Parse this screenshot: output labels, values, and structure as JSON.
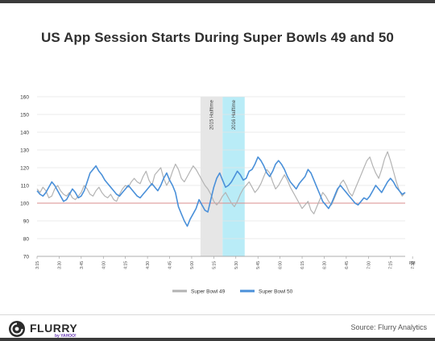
{
  "header": {
    "title": "US App Session Starts During Super Bowls 49 and 50"
  },
  "footer": {
    "logo_text": "FLURRY",
    "logo_sub": "by YAHOO!",
    "source": "Source: Flurry Analytics"
  },
  "colors": {
    "sb49": "#b3b3b3",
    "sb50": "#4a90d9",
    "baseline": "#d98c8c",
    "halftime_2015": "#e6e6e6",
    "halftime_2016": "#b9ecf7"
  },
  "chart_data": {
    "type": "line",
    "title": "US App Session Starts During Super Bowls 49 and 50",
    "ylim": [
      70,
      160
    ],
    "yticks": [
      70,
      80,
      90,
      100,
      110,
      120,
      130,
      140,
      150,
      160
    ],
    "xlim": [
      0,
      125
    ],
    "xticks": [
      {
        "x": 0,
        "label": "3:15"
      },
      {
        "x": 7.5,
        "label": "3:30"
      },
      {
        "x": 15,
        "label": "3:45"
      },
      {
        "x": 22.5,
        "label": "4:00"
      },
      {
        "x": 30,
        "label": "4:15"
      },
      {
        "x": 37.5,
        "label": "4:30"
      },
      {
        "x": 45,
        "label": "4:45"
      },
      {
        "x": 52.5,
        "label": "5:00"
      },
      {
        "x": 60,
        "label": "5:15"
      },
      {
        "x": 67.5,
        "label": "5:30"
      },
      {
        "x": 75,
        "label": "5:45"
      },
      {
        "x": 82.5,
        "label": "6:00"
      },
      {
        "x": 90,
        "label": "6:15"
      },
      {
        "x": 97.5,
        "label": "6:30"
      },
      {
        "x": 105,
        "label": "6:45"
      },
      {
        "x": 112.5,
        "label": "7:00"
      },
      {
        "x": 120,
        "label": "7:15"
      },
      {
        "x": 127.5,
        "label": "7:30"
      }
    ],
    "x_unit_label": "PM",
    "baseline": 100,
    "bands": [
      {
        "label": "2015 Halftime",
        "x_start": 55.5,
        "x_end": 63
      },
      {
        "label": "2016 Halftime",
        "x_start": 63,
        "x_end": 70.5
      }
    ],
    "series": [
      {
        "name": "Super Bowl 49",
        "values": [
          108,
          106,
          109,
          107,
          103,
          104,
          108,
          110,
          107,
          105,
          104,
          106,
          103,
          102,
          104,
          106,
          110,
          108,
          105,
          104,
          107,
          109,
          106,
          104,
          103,
          105,
          102,
          101,
          105,
          108,
          110,
          109,
          112,
          114,
          112,
          111,
          115,
          118,
          113,
          110,
          116,
          118,
          120,
          114,
          110,
          113,
          118,
          122,
          119,
          114,
          112,
          115,
          118,
          121,
          119,
          116,
          113,
          110,
          108,
          105,
          101,
          99,
          101,
          104,
          106,
          103,
          100,
          98,
          101,
          105,
          108,
          110,
          112,
          109,
          106,
          108,
          111,
          115,
          119,
          117,
          112,
          108,
          110,
          113,
          116,
          113,
          109,
          106,
          103,
          100,
          97,
          99,
          101,
          96,
          94,
          98,
          102,
          106,
          104,
          101,
          99,
          103,
          107,
          111,
          113,
          110,
          106,
          104,
          108,
          112,
          116,
          120,
          124,
          126,
          121,
          117,
          114,
          119,
          125,
          129,
          124,
          118,
          112,
          107,
          104,
          106
        ]
      },
      {
        "name": "Super Bowl 50",
        "values": [
          107,
          105,
          104,
          106,
          109,
          112,
          110,
          107,
          104,
          101,
          102,
          105,
          108,
          106,
          103,
          104,
          107,
          112,
          117,
          119,
          121,
          118,
          116,
          113,
          111,
          109,
          107,
          105,
          104,
          106,
          108,
          110,
          108,
          106,
          104,
          103,
          105,
          107,
          109,
          111,
          109,
          107,
          110,
          114,
          117,
          113,
          110,
          106,
          98,
          94,
          90,
          87,
          91,
          94,
          97,
          102,
          99,
          96,
          95,
          102,
          109,
          114,
          117,
          113,
          109,
          110,
          112,
          115,
          118,
          116,
          113,
          114,
          118,
          119,
          122,
          126,
          124,
          121,
          117,
          115,
          118,
          122,
          124,
          122,
          119,
          115,
          112,
          110,
          108,
          111,
          113,
          115,
          119,
          117,
          113,
          109,
          105,
          101,
          99,
          97,
          100,
          104,
          108,
          110,
          108,
          106,
          104,
          102,
          100,
          99,
          101,
          103,
          102,
          104,
          107,
          110,
          108,
          106,
          109,
          112,
          114,
          112,
          109,
          107,
          105,
          106
        ]
      }
    ]
  }
}
